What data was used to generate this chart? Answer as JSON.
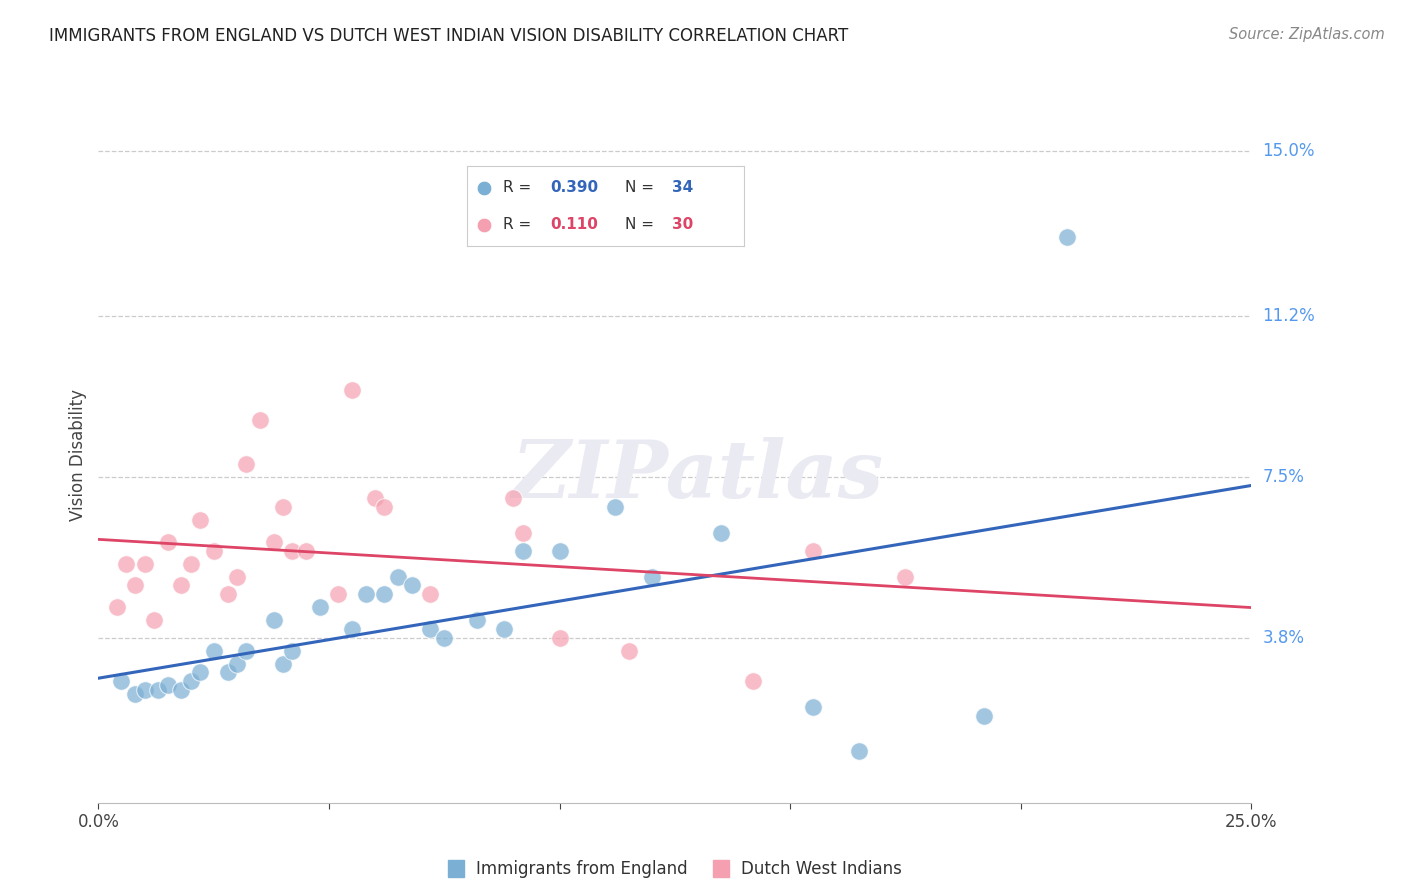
{
  "title": "IMMIGRANTS FROM ENGLAND VS DUTCH WEST INDIAN VISION DISABILITY CORRELATION CHART",
  "source": "Source: ZipAtlas.com",
  "ylabel": "Vision Disability",
  "xlim": [
    0.0,
    0.25
  ],
  "ylim": [
    0.0,
    0.16
  ],
  "ytick_positions": [
    0.038,
    0.075,
    0.112,
    0.15
  ],
  "ytick_labels": [
    "3.8%",
    "7.5%",
    "11.2%",
    "15.0%"
  ],
  "xtick_positions": [
    0.0,
    0.05,
    0.1,
    0.15,
    0.2,
    0.25
  ],
  "xtick_show": [
    0.0,
    0.25
  ],
  "color_blue_scatter": "#7BAFD4",
  "color_pink_scatter": "#F4A0B0",
  "color_blue_line": "#3366BB",
  "color_pink_line": "#DD4466",
  "color_ytick": "#5599EE",
  "color_grid": "#CCCCCC",
  "watermark_text": "ZIPatlas",
  "watermark_color": "#EAEAF2",
  "legend_r1": "0.390",
  "legend_n1": "34",
  "legend_r2": "0.110",
  "legend_n2": "30",
  "blue_points": [
    [
      0.005,
      0.028
    ],
    [
      0.008,
      0.025
    ],
    [
      0.01,
      0.026
    ],
    [
      0.013,
      0.026
    ],
    [
      0.015,
      0.027
    ],
    [
      0.018,
      0.026
    ],
    [
      0.02,
      0.028
    ],
    [
      0.022,
      0.03
    ],
    [
      0.025,
      0.035
    ],
    [
      0.028,
      0.03
    ],
    [
      0.03,
      0.032
    ],
    [
      0.032,
      0.035
    ],
    [
      0.038,
      0.042
    ],
    [
      0.04,
      0.032
    ],
    [
      0.042,
      0.035
    ],
    [
      0.048,
      0.045
    ],
    [
      0.055,
      0.04
    ],
    [
      0.058,
      0.048
    ],
    [
      0.062,
      0.048
    ],
    [
      0.065,
      0.052
    ],
    [
      0.068,
      0.05
    ],
    [
      0.072,
      0.04
    ],
    [
      0.075,
      0.038
    ],
    [
      0.082,
      0.042
    ],
    [
      0.088,
      0.04
    ],
    [
      0.092,
      0.058
    ],
    [
      0.1,
      0.058
    ],
    [
      0.112,
      0.068
    ],
    [
      0.12,
      0.052
    ],
    [
      0.135,
      0.062
    ],
    [
      0.155,
      0.022
    ],
    [
      0.165,
      0.012
    ],
    [
      0.192,
      0.02
    ],
    [
      0.21,
      0.13
    ]
  ],
  "pink_points": [
    [
      0.004,
      0.045
    ],
    [
      0.006,
      0.055
    ],
    [
      0.008,
      0.05
    ],
    [
      0.01,
      0.055
    ],
    [
      0.012,
      0.042
    ],
    [
      0.015,
      0.06
    ],
    [
      0.018,
      0.05
    ],
    [
      0.02,
      0.055
    ],
    [
      0.022,
      0.065
    ],
    [
      0.025,
      0.058
    ],
    [
      0.028,
      0.048
    ],
    [
      0.03,
      0.052
    ],
    [
      0.032,
      0.078
    ],
    [
      0.035,
      0.088
    ],
    [
      0.038,
      0.06
    ],
    [
      0.04,
      0.068
    ],
    [
      0.042,
      0.058
    ],
    [
      0.045,
      0.058
    ],
    [
      0.052,
      0.048
    ],
    [
      0.055,
      0.095
    ],
    [
      0.06,
      0.07
    ],
    [
      0.062,
      0.068
    ],
    [
      0.072,
      0.048
    ],
    [
      0.09,
      0.07
    ],
    [
      0.092,
      0.062
    ],
    [
      0.1,
      0.038
    ],
    [
      0.115,
      0.035
    ],
    [
      0.142,
      0.028
    ],
    [
      0.155,
      0.058
    ],
    [
      0.175,
      0.052
    ]
  ]
}
